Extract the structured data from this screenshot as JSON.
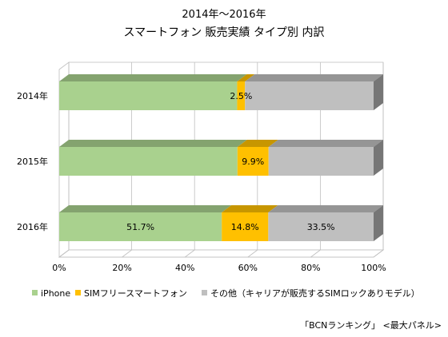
{
  "chart_data": {
    "type": "bar",
    "orientation": "horizontal",
    "stacked": true,
    "percent_stacked": true,
    "three_d": true,
    "title": [
      "2014年〜2016年",
      "スマートフォン 販売実績 タイプ別 内訳"
    ],
    "categories": [
      "2014年",
      "2015年",
      "2016年"
    ],
    "series": [
      {
        "name": "iPhone",
        "color": "#A9D18E",
        "values": [
          56.6,
          56.7,
          51.7
        ],
        "labels": [
          "",
          "",
          "51.7%"
        ]
      },
      {
        "name": "SIMフリースマートフォン",
        "color": "#FFC000",
        "values": [
          2.5,
          9.9,
          14.8
        ],
        "labels": [
          "2.5%",
          "9.9%",
          "14.8%"
        ]
      },
      {
        "name": "その他（キャリアが販売するSIMロックありモデル）",
        "color": "#BFBFBF",
        "values": [
          40.9,
          33.4,
          33.5
        ],
        "labels": [
          "",
          "",
          "33.5%"
        ]
      }
    ],
    "x_ticks": [
      "0%",
      "20%",
      "40%",
      "60%",
      "80%",
      "100%"
    ],
    "xlim": [
      0,
      100
    ],
    "grid": true,
    "legend_position": "bottom",
    "source": "「BCNランキング」 <最大パネル>"
  }
}
